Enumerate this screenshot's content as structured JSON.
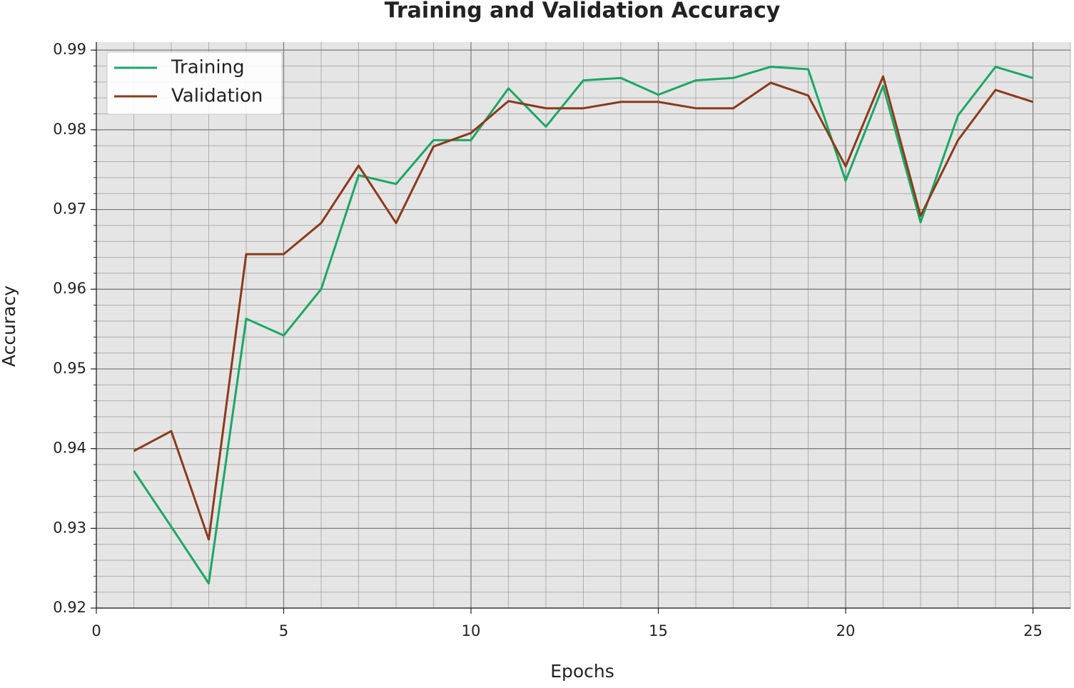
{
  "chart_data": {
    "type": "line",
    "title": "Training and Validation Accuracy",
    "x_label": "Epochs",
    "y_label": "Accuracy",
    "x": [
      1,
      2,
      3,
      4,
      5,
      6,
      7,
      8,
      9,
      10,
      11,
      12,
      13,
      14,
      15,
      16,
      17,
      18,
      19,
      20,
      21,
      22,
      23,
      24,
      25
    ],
    "series": [
      {
        "name": "Training",
        "color": "#1aa865",
        "values": [
          0.9372,
          0.9302,
          0.9231,
          0.9563,
          0.9542,
          0.96,
          0.9743,
          0.9732,
          0.9787,
          0.9787,
          0.9852,
          0.9804,
          0.9862,
          0.9865,
          0.9844,
          0.9862,
          0.9865,
          0.9879,
          0.9876,
          0.9736,
          0.9855,
          0.9684,
          0.9818,
          0.9879,
          0.9865
        ]
      },
      {
        "name": "Validation",
        "color": "#8b3a1a",
        "values": [
          0.9397,
          0.9422,
          0.9286,
          0.9644,
          0.9644,
          0.9683,
          0.9755,
          0.9683,
          0.9779,
          0.9796,
          0.9836,
          0.9827,
          0.9827,
          0.9835,
          0.9835,
          0.9827,
          0.9827,
          0.9859,
          0.9843,
          0.9754,
          0.9867,
          0.9692,
          0.9787,
          0.985,
          0.9835
        ]
      }
    ],
    "xlim": [
      0,
      26
    ],
    "xticks": [
      0,
      5,
      10,
      15,
      20,
      25
    ],
    "ylim": [
      0.92,
      0.991
    ],
    "yticks": [
      0.92,
      0.93,
      0.94,
      0.95,
      0.96,
      0.97,
      0.98,
      0.99
    ],
    "grid": true,
    "minor_grid": {
      "x": 1,
      "y": 0.002
    },
    "legend": "upper left"
  }
}
